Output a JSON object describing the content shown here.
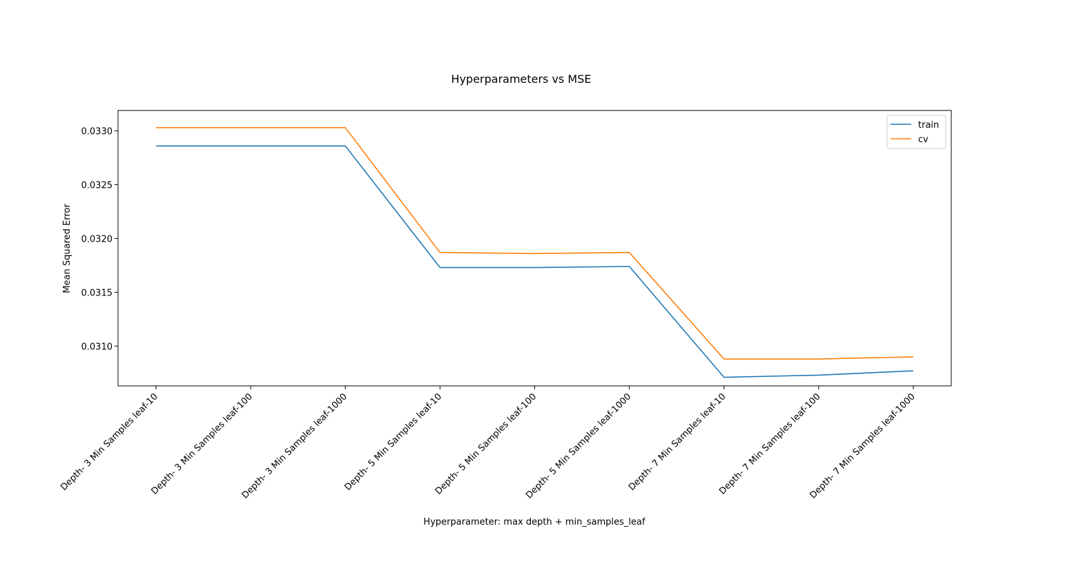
{
  "chart_data": {
    "type": "line",
    "title": "Hyperparameters vs MSE",
    "xlabel": "Hyperparameter: max depth + min_samples_leaf",
    "ylabel": "Mean Squared Error",
    "categories": [
      "Depth- 3 Min Samples leaf-10",
      "Depth- 3 Min Samples leaf-100",
      "Depth- 3 Min Samples leaf-1000",
      "Depth- 5 Min Samples leaf-10",
      "Depth- 5 Min Samples leaf-100",
      "Depth- 5 Min Samples leaf-1000",
      "Depth- 7 Min Samples leaf-10",
      "Depth- 7 Min Samples leaf-100",
      "Depth- 7 Min Samples leaf-1000"
    ],
    "series": [
      {
        "name": "train",
        "color": "#1f77b4",
        "values": [
          0.03286,
          0.03286,
          0.03286,
          0.03173,
          0.03173,
          0.03174,
          0.03071,
          0.03073,
          0.03077
        ]
      },
      {
        "name": "cv",
        "color": "#ff7f0e",
        "values": [
          0.03303,
          0.03303,
          0.03303,
          0.03187,
          0.03186,
          0.03187,
          0.03088,
          0.03088,
          0.0309
        ]
      }
    ],
    "yticks": [
      "0.0310",
      "0.0315",
      "0.0320",
      "0.0325",
      "0.0330"
    ],
    "ylim": [
      0.03063,
      0.03319
    ],
    "grid": false,
    "legend_position": "upper right"
  }
}
